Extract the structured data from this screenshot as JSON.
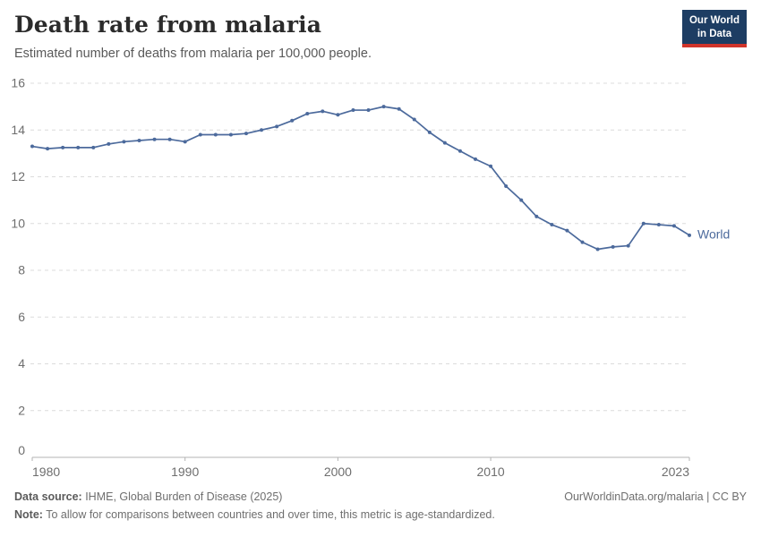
{
  "header": {
    "title": "Death rate from malaria",
    "subtitle": "Estimated number of deaths from malaria per 100,000 people."
  },
  "logo": {
    "line1": "Our World",
    "line2": "in Data",
    "bg_color": "#1d3d63",
    "bar_color": "#d0342b"
  },
  "chart_data": {
    "type": "line",
    "title": "Death rate from malaria",
    "subtitle": "Estimated number of deaths from malaria per 100,000 people.",
    "xlabel": "",
    "ylabel": "",
    "xlim": [
      1980,
      2023
    ],
    "ylim": [
      0,
      16
    ],
    "x_ticks": [
      1980,
      1990,
      2000,
      2010,
      2023
    ],
    "y_ticks": [
      0,
      2,
      4,
      6,
      8,
      10,
      12,
      14,
      16
    ],
    "grid": true,
    "legend_position": "end-of-line",
    "line_color": "#4C6A9C",
    "series": [
      {
        "name": "World",
        "color": "#4C6A9C",
        "x": [
          1980,
          1981,
          1982,
          1983,
          1984,
          1985,
          1986,
          1987,
          1988,
          1989,
          1990,
          1991,
          1992,
          1993,
          1994,
          1995,
          1996,
          1997,
          1998,
          1999,
          2000,
          2001,
          2002,
          2003,
          2004,
          2005,
          2006,
          2007,
          2008,
          2009,
          2010,
          2011,
          2012,
          2013,
          2014,
          2015,
          2016,
          2017,
          2018,
          2019,
          2020,
          2021,
          2022,
          2023
        ],
        "values": [
          13.3,
          13.2,
          13.25,
          13.25,
          13.25,
          13.4,
          13.5,
          13.55,
          13.6,
          13.6,
          13.5,
          13.8,
          13.8,
          13.8,
          13.85,
          14.0,
          14.15,
          14.4,
          14.7,
          14.8,
          14.65,
          14.85,
          14.85,
          15.0,
          14.9,
          14.45,
          13.9,
          13.45,
          13.1,
          12.75,
          12.45,
          11.6,
          11.0,
          10.3,
          9.95,
          9.7,
          9.2,
          8.9,
          9.0,
          9.05,
          10.0,
          9.95,
          9.9,
          9.5
        ]
      }
    ]
  },
  "footer": {
    "source_label": "Data source:",
    "source_text": " IHME, Global Burden of Disease (2025)",
    "link_text": "OurWorldinData.org/malaria | CC BY",
    "note_label": "Note:",
    "note_text": " To allow for comparisons between countries and over time, this metric is age-standardized."
  }
}
